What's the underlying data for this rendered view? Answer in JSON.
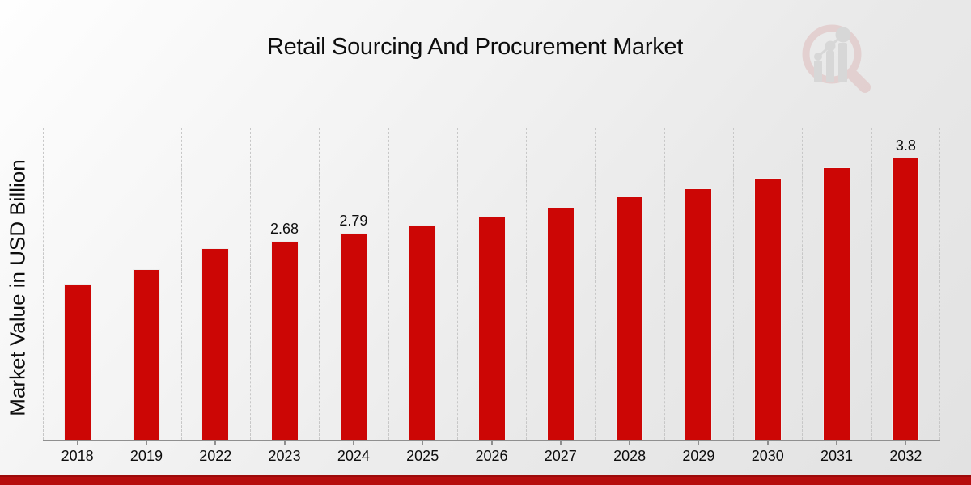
{
  "title": "Retail Sourcing And Procurement Market",
  "icons": {
    "logo": "magnifier-bar-chart-watermark"
  },
  "colors": {
    "bar": "#cc0605",
    "accent_strip": "#b60d0d",
    "gridline": "#c7c7c7",
    "axis": "#8f8f8f",
    "text": "#0d0d0d",
    "watermark_pink": "#ddb8b8",
    "watermark_gray": "#c6c6c6"
  },
  "chart_data": {
    "type": "bar",
    "title": "Retail Sourcing And Procurement Market",
    "xlabel": "",
    "ylabel": "Market Value in USD Billion",
    "categories": [
      "2018",
      "2019",
      "2022",
      "2023",
      "2024",
      "2025",
      "2026",
      "2027",
      "2028",
      "2029",
      "2030",
      "2031",
      "2032"
    ],
    "values": [
      2.1,
      2.3,
      2.58,
      2.68,
      2.79,
      2.89,
      3.01,
      3.13,
      3.28,
      3.38,
      3.53,
      3.67,
      3.8
    ],
    "bar_labels": [
      "",
      "",
      "",
      "2.68",
      "2.79",
      "",
      "",
      "",
      "",
      "",
      "",
      "",
      "3.8"
    ],
    "ylim": [
      0,
      4.2
    ],
    "grid": "vertical-dashed-slot-separators",
    "legend": "none",
    "bar_color": "#cc0605"
  }
}
